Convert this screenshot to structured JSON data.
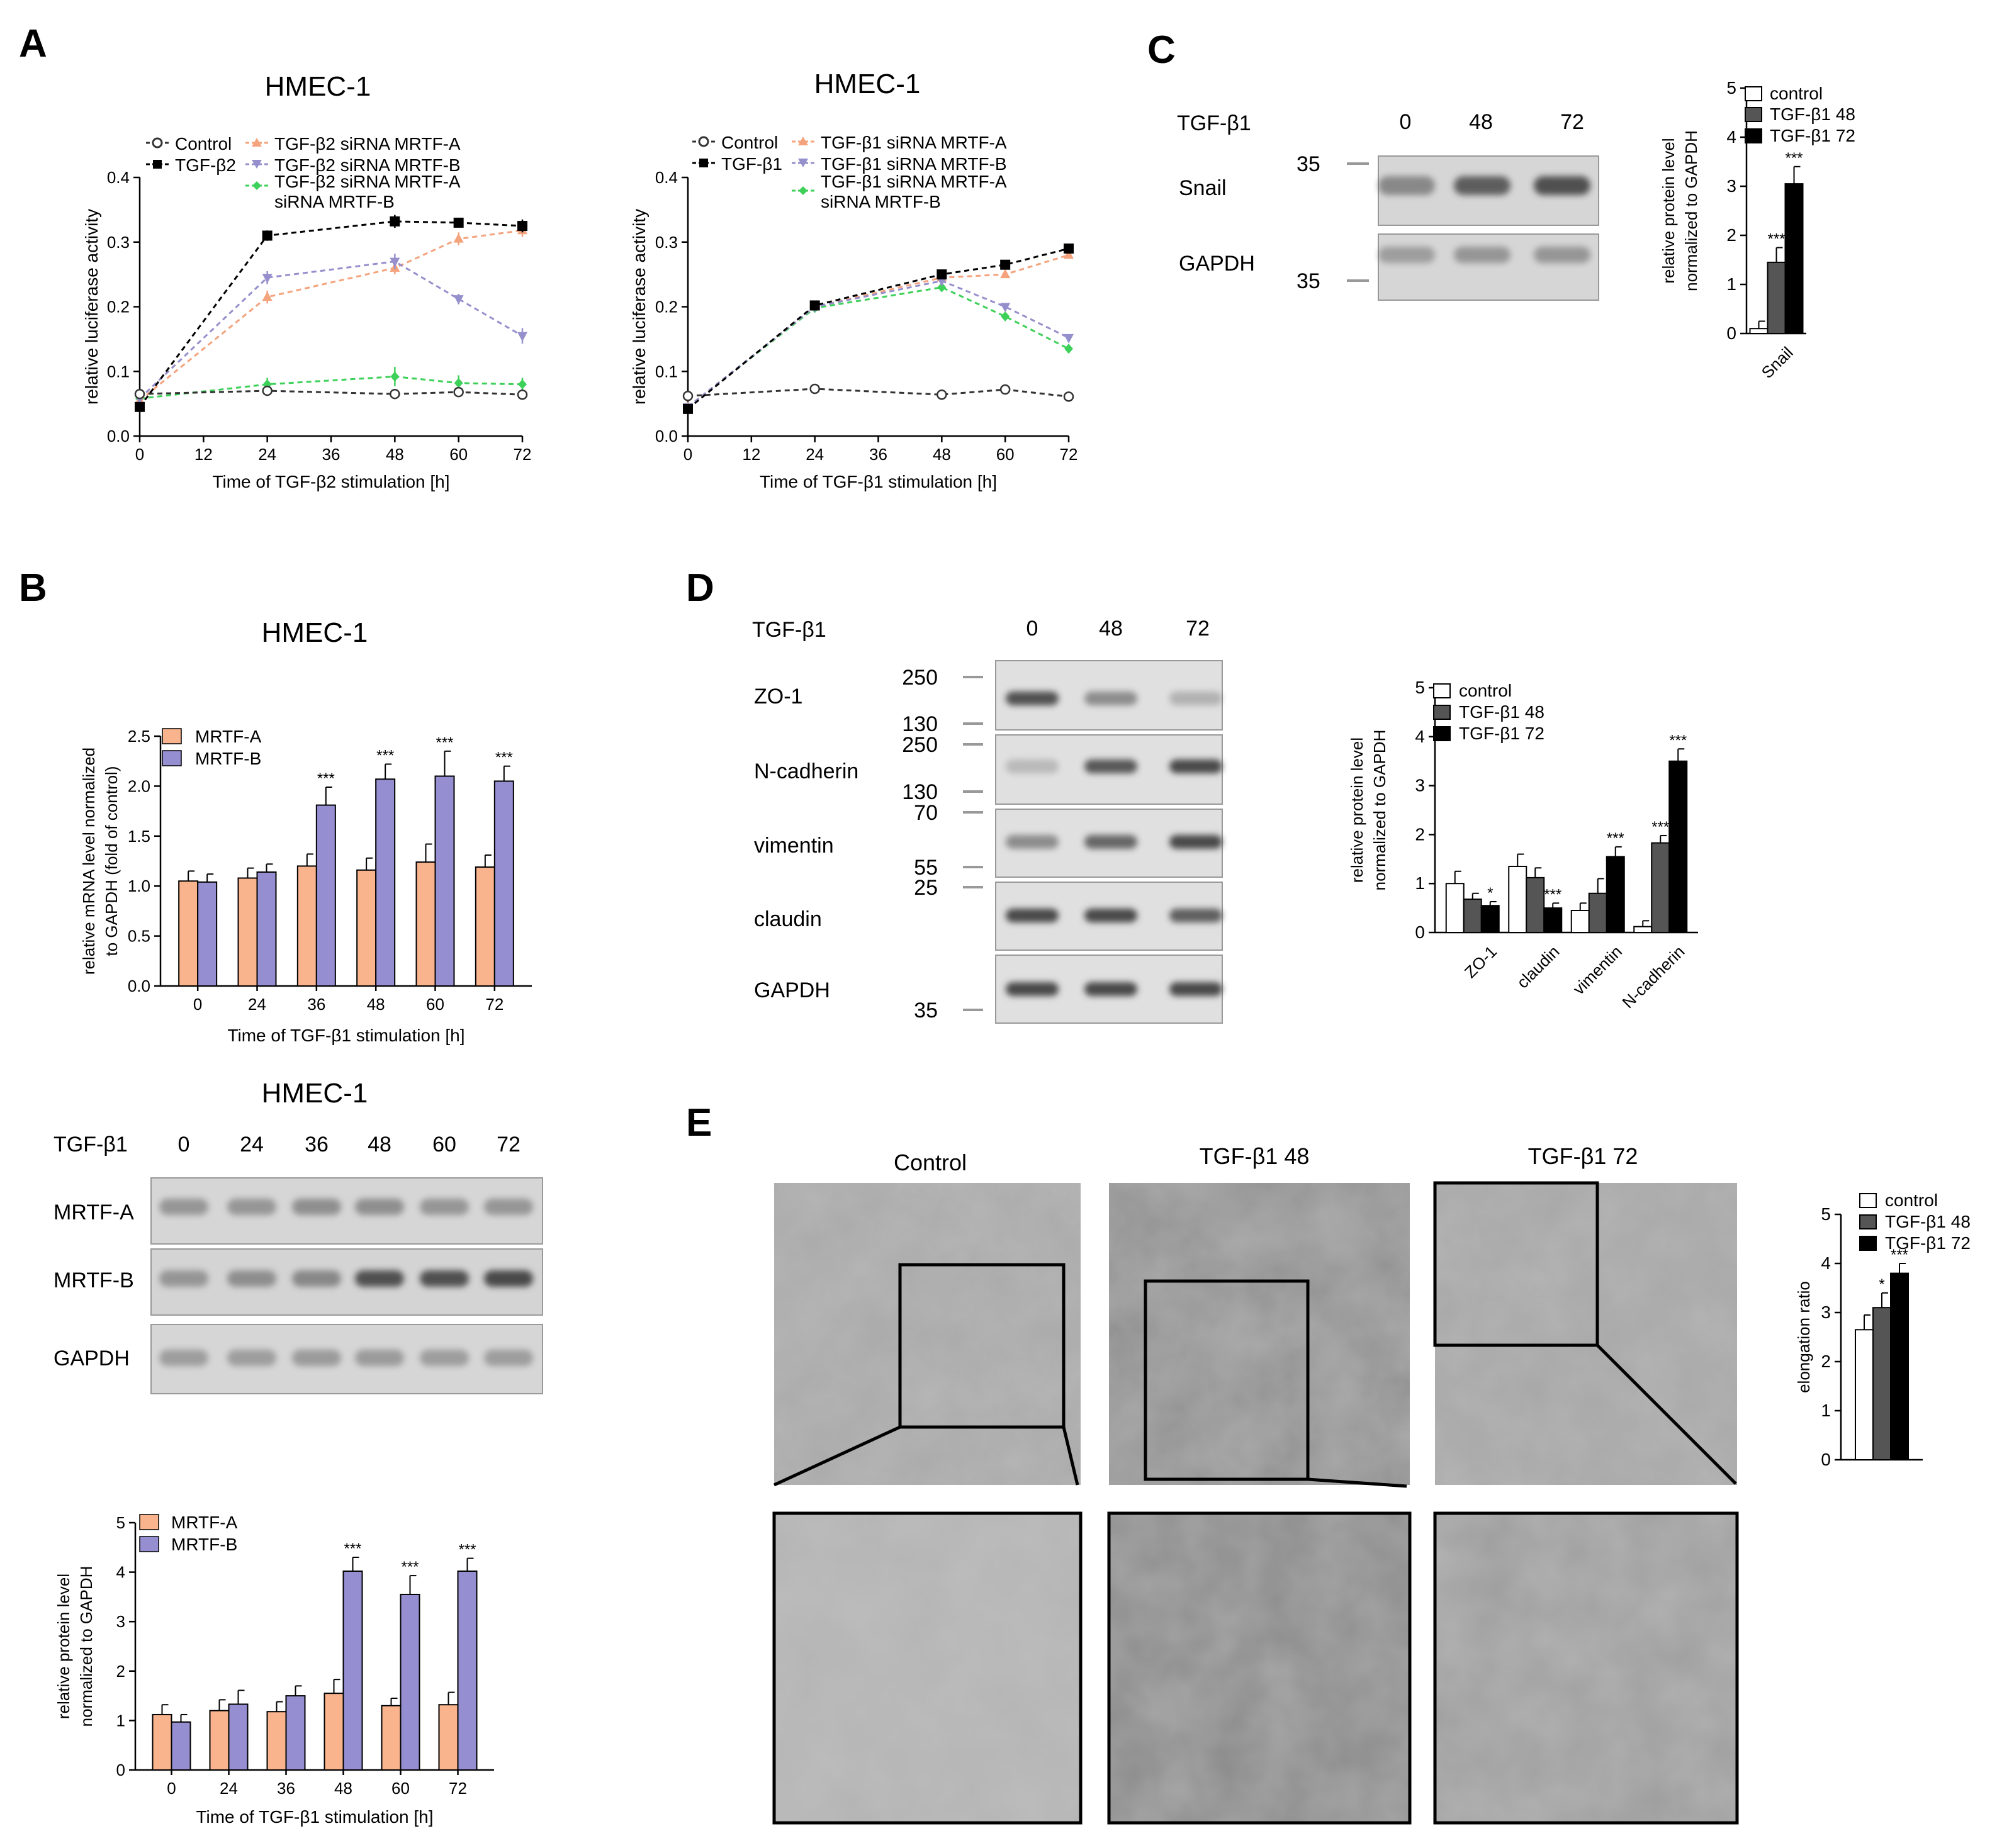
{
  "panels": {
    "A": {
      "letter": "A",
      "left": {
        "title": "HMEC-1",
        "legend": [
          "Control",
          "TGF-β2",
          "TGF-β2 siRNA MRTF-A",
          "TGF-β2 siRNA MRTF-B",
          "TGF-β2 siRNA MRTF-A",
          "siRNA MRTF-B"
        ]
      },
      "right": {
        "title": "HMEC-1",
        "legend": [
          "Control",
          "TGF-β1",
          "TGF-β1 siRNA MRTF-A",
          "TGF-β1 siRNA MRTF-B",
          "TGF-β1 siRNA MRTF-A",
          "siRNA MRTF-B"
        ]
      }
    },
    "B": {
      "letter": "B",
      "top_title": "HMEC-1",
      "legend": [
        "MRTF-A",
        "MRTF-B"
      ],
      "blot": {
        "title": "HMEC-1",
        "treatment_label": "TGF-β1",
        "lanes": [
          "0",
          "24",
          "36",
          "48",
          "60",
          "72"
        ],
        "rows": [
          "MRTF-A",
          "MRTF-B",
          "GAPDH"
        ]
      }
    },
    "C": {
      "letter": "C",
      "treatment_label": "TGF-β1",
      "lanes": [
        "0",
        "48",
        "72"
      ],
      "rows": [
        "Snail",
        "GAPDH"
      ],
      "markers": [
        "35",
        "35"
      ],
      "legend": [
        "control",
        "TGF-β1 48",
        "TGF-β1 72"
      ]
    },
    "D": {
      "letter": "D",
      "treatment_label": "TGF-β1",
      "lanes": [
        "0",
        "48",
        "72"
      ],
      "rows": [
        "ZO-1",
        "N-cadherin",
        "vimentin",
        "claudin",
        "GAPDH"
      ],
      "markers": [
        "250",
        "130",
        "250",
        "130",
        "70",
        "55",
        "25",
        "35"
      ],
      "legend": [
        "control",
        "TGF-β1 48",
        "TGF-β1 72"
      ]
    },
    "E": {
      "letter": "E",
      "image_labels": [
        "Control",
        "TGF-β1  48",
        "TGF-β1  72"
      ],
      "legend": [
        "control",
        "TGF-β1 48",
        "TGF-β1 72"
      ]
    }
  },
  "colors": {
    "control_line": "#333333",
    "tgf_line": "#000000",
    "siA": "#f4a37d",
    "siB": "#9590cc",
    "siAB": "#3ed15a",
    "mrtfa_bar": "#f9b48e",
    "mrtfb_bar": "#958fd1",
    "ctrl_bar": "#ffffff",
    "t48_bar": "#555555",
    "t72_bar": "#000000",
    "blot_bg": "#d6d6d6",
    "band": "#4a4a4a",
    "micro_bg": "#9c9c9c"
  },
  "chart_data": [
    {
      "id": "A-left",
      "type": "line",
      "title": "HMEC-1",
      "xlabel": "Time of TGF-β2 stimulation [h]",
      "ylabel": "relative luciferase activity",
      "xlim": [
        0,
        72
      ],
      "ylim": [
        0,
        0.4
      ],
      "xticks": [
        0,
        12,
        24,
        36,
        48,
        60,
        72
      ],
      "yticks": [
        0.0,
        0.1,
        0.2,
        0.3,
        0.4
      ],
      "ytick_labels": [
        "0.0",
        "0.1",
        "0.2",
        "0.3",
        "0.4"
      ],
      "x": [
        0,
        24,
        48,
        60,
        72
      ],
      "series": [
        {
          "name": "Control",
          "values": [
            0.065,
            0.07,
            0.065,
            0.068,
            0.064
          ],
          "err": [
            0.003,
            0.003,
            0.003,
            0.003,
            0.003
          ]
        },
        {
          "name": "TGF-β2",
          "values": [
            0.045,
            0.31,
            0.332,
            0.33,
            0.325
          ],
          "err": [
            0.005,
            0.008,
            0.01,
            0.006,
            0.01
          ]
        },
        {
          "name": "TGF-β2 siRNA MRTF-A",
          "values": [
            0.055,
            0.215,
            0.26,
            0.305,
            0.318
          ],
          "err": [
            0.004,
            0.01,
            0.01,
            0.01,
            0.01
          ]
        },
        {
          "name": "TGF-β2 siRNA MRTF-B",
          "values": [
            0.058,
            0.245,
            0.27,
            0.212,
            0.155
          ],
          "err": [
            0.004,
            0.01,
            0.012,
            0.008,
            0.012
          ]
        },
        {
          "name": "TGF-β2 siRNA MRTF-A siRNA MRTF-B",
          "values": [
            0.058,
            0.08,
            0.092,
            0.082,
            0.08
          ],
          "err": [
            0.004,
            0.01,
            0.015,
            0.012,
            0.01
          ]
        }
      ]
    },
    {
      "id": "A-right",
      "type": "line",
      "title": "HMEC-1",
      "xlabel": "Time of TGF-β1 stimulation [h]",
      "ylabel": "relative luciferase activity",
      "xlim": [
        0,
        72
      ],
      "ylim": [
        0,
        0.4
      ],
      "xticks": [
        0,
        12,
        24,
        36,
        48,
        60,
        72
      ],
      "yticks": [
        0.0,
        0.1,
        0.2,
        0.3,
        0.4
      ],
      "ytick_labels": [
        "0.0",
        "0.1",
        "0.2",
        "0.3",
        "0.4"
      ],
      "x": [
        0,
        24,
        48,
        60,
        72
      ],
      "series": [
        {
          "name": "Control",
          "values": [
            0.062,
            0.073,
            0.064,
            0.072,
            0.061
          ],
          "err": [
            0.002,
            0.002,
            0.002,
            0.002,
            0.002
          ]
        },
        {
          "name": "TGF-β1",
          "values": [
            0.042,
            0.202,
            0.25,
            0.265,
            0.29
          ],
          "err": [
            0.004,
            0.004,
            0.005,
            0.005,
            0.005
          ]
        },
        {
          "name": "TGF-β1 siRNA MRTF-A",
          "values": [
            0.045,
            0.2,
            0.245,
            0.25,
            0.28
          ],
          "err": [
            0.004,
            0.004,
            0.005,
            0.005,
            0.005
          ]
        },
        {
          "name": "TGF-β1 siRNA MRTF-B",
          "values": [
            0.045,
            0.2,
            0.24,
            0.2,
            0.152
          ],
          "err": [
            0.004,
            0.004,
            0.005,
            0.005,
            0.005
          ]
        },
        {
          "name": "TGF-β1 siRNA MRTF-A siRNA MRTF-B",
          "values": [
            0.045,
            0.198,
            0.23,
            0.185,
            0.135
          ],
          "err": [
            0.004,
            0.004,
            0.006,
            0.006,
            0.006
          ]
        }
      ]
    },
    {
      "id": "B-mrna",
      "type": "bar",
      "title": "HMEC-1",
      "xlabel": "Time of TGF-β1 stimulation [h]",
      "ylabel": [
        "relative mRNA level normalized",
        "to GAPDH (fold of control)"
      ],
      "categories": [
        "0",
        "24",
        "36",
        "48",
        "60",
        "72"
      ],
      "ylim": [
        0,
        2.5
      ],
      "yticks": [
        0,
        0.5,
        1.0,
        1.5,
        2.0,
        2.5
      ],
      "ytick_labels": [
        "0.0",
        "0.5",
        "1.0",
        "1.5",
        "2.0",
        "2.5"
      ],
      "series": [
        {
          "name": "MRTF-A",
          "values": [
            1.05,
            1.08,
            1.2,
            1.16,
            1.24,
            1.19
          ],
          "err": [
            0.1,
            0.1,
            0.12,
            0.12,
            0.18,
            0.12
          ]
        },
        {
          "name": "MRTF-B",
          "values": [
            1.04,
            1.14,
            1.81,
            2.07,
            2.1,
            2.05
          ],
          "err": [
            0.08,
            0.08,
            0.18,
            0.15,
            0.25,
            0.15
          ]
        }
      ],
      "annotations": [
        "",
        "",
        "***",
        "***",
        "***",
        "***"
      ]
    },
    {
      "id": "B-protein",
      "type": "bar",
      "xlabel": "Time of TGF-β1 stimulation [h]",
      "ylabel": [
        "relative protein level",
        "normalized to GAPDH"
      ],
      "categories": [
        "0",
        "24",
        "36",
        "48",
        "60",
        "72"
      ],
      "ylim": [
        0,
        5
      ],
      "yticks": [
        0,
        1,
        2,
        3,
        4,
        5
      ],
      "ytick_labels": [
        "0",
        "1",
        "2",
        "3",
        "4",
        "5"
      ],
      "series": [
        {
          "name": "MRTF-A",
          "values": [
            1.12,
            1.2,
            1.18,
            1.55,
            1.3,
            1.32
          ],
          "err": [
            0.2,
            0.22,
            0.2,
            0.28,
            0.15,
            0.25
          ]
        },
        {
          "name": "MRTF-B",
          "values": [
            0.97,
            1.33,
            1.5,
            4.02,
            3.55,
            4.02
          ],
          "err": [
            0.15,
            0.28,
            0.2,
            0.28,
            0.38,
            0.26
          ]
        }
      ],
      "annotations": [
        "",
        "",
        "",
        "***",
        "***",
        "***"
      ]
    },
    {
      "id": "C-snail",
      "type": "bar",
      "ylabel": [
        "relative protein level",
        "normalized to GAPDH"
      ],
      "categories": [
        "Snail"
      ],
      "ylim": [
        0,
        5
      ],
      "yticks": [
        0,
        1,
        2,
        3,
        4,
        5
      ],
      "ytick_labels": [
        "0",
        "1",
        "2",
        "3",
        "4",
        "5"
      ],
      "series": [
        {
          "name": "control",
          "values": [
            0.1
          ],
          "err": [
            0.15
          ]
        },
        {
          "name": "TGF-β1 48",
          "values": [
            1.45
          ],
          "err": [
            0.3
          ]
        },
        {
          "name": "TGF-β1 72",
          "values": [
            3.05
          ],
          "err": [
            0.35
          ]
        }
      ],
      "annotations": [
        [
          "",
          "***",
          "***"
        ]
      ]
    },
    {
      "id": "D-markers",
      "type": "bar",
      "ylabel": [
        "relative protein level",
        "normalized to GAPDH"
      ],
      "categories": [
        "ZO-1",
        "claudin",
        "vimentin",
        "N-cadherin"
      ],
      "ylim": [
        0,
        5
      ],
      "yticks": [
        0,
        1,
        2,
        3,
        4,
        5
      ],
      "ytick_labels": [
        "0",
        "1",
        "2",
        "3",
        "4",
        "5"
      ],
      "series": [
        {
          "name": "control",
          "values": [
            1.0,
            1.35,
            0.45,
            0.12
          ],
          "err": [
            0.25,
            0.25,
            0.15,
            0.12
          ]
        },
        {
          "name": "TGF-β1 48",
          "values": [
            0.68,
            1.12,
            0.8,
            1.83
          ],
          "err": [
            0.12,
            0.2,
            0.3,
            0.15
          ]
        },
        {
          "name": "TGF-β1 72",
          "values": [
            0.55,
            0.5,
            1.55,
            3.5
          ],
          "err": [
            0.08,
            0.1,
            0.2,
            0.25
          ]
        }
      ],
      "annotations": [
        [
          "",
          "",
          "*"
        ],
        [
          "",
          "",
          "***"
        ],
        [
          "",
          "",
          "***"
        ],
        [
          "",
          "***",
          "***"
        ]
      ]
    },
    {
      "id": "E-elongation",
      "type": "bar",
      "ylabel": "elongation ratio",
      "categories": [
        ""
      ],
      "ylim": [
        0,
        5
      ],
      "yticks": [
        0,
        1,
        2,
        3,
        4,
        5
      ],
      "ytick_labels": [
        "0",
        "1",
        "2",
        "3",
        "4",
        "5"
      ],
      "series": [
        {
          "name": "control",
          "values": [
            2.65
          ],
          "err": [
            0.3
          ]
        },
        {
          "name": "TGF-β1 48",
          "values": [
            3.1
          ],
          "err": [
            0.3
          ]
        },
        {
          "name": "TGF-β1 72",
          "values": [
            3.8
          ],
          "err": [
            0.2
          ]
        }
      ],
      "annotations": [
        [
          "",
          "*",
          "***"
        ]
      ]
    }
  ]
}
